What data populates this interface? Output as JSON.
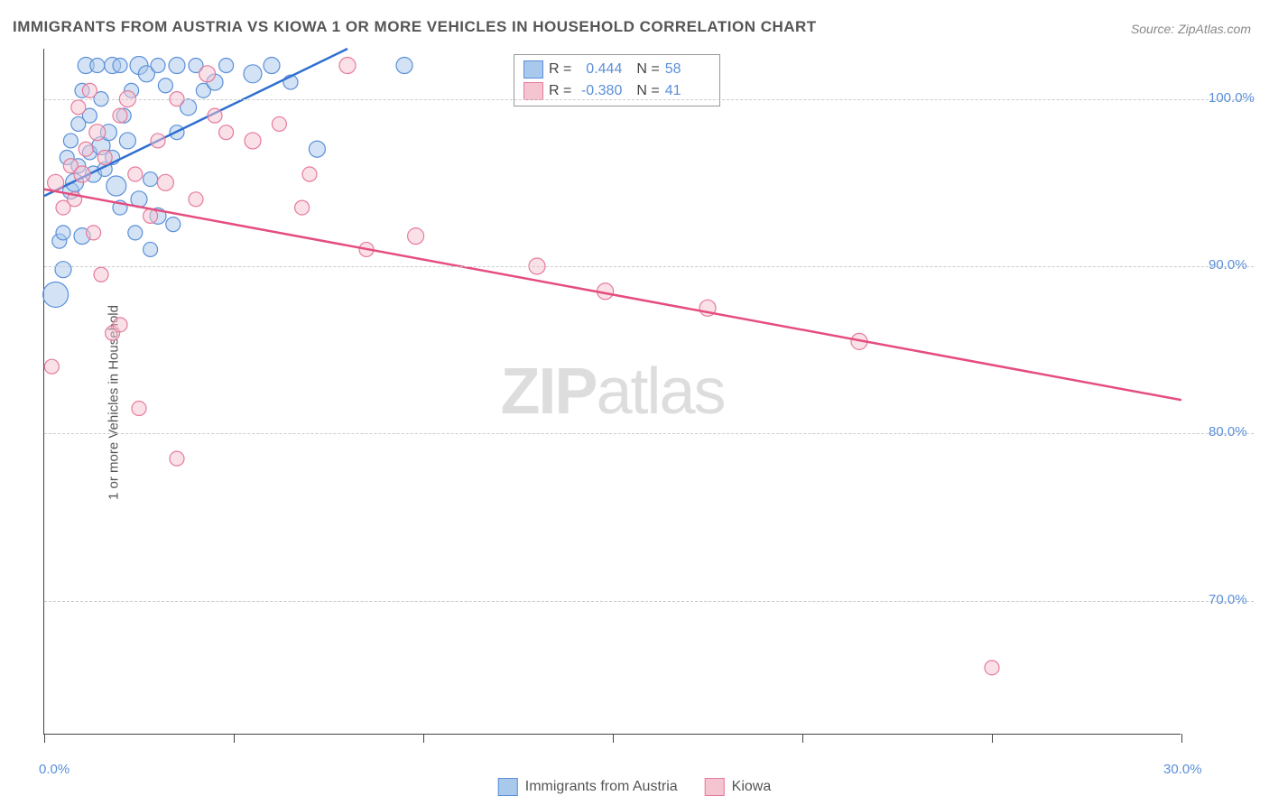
{
  "title": "IMMIGRANTS FROM AUSTRIA VS KIOWA 1 OR MORE VEHICLES IN HOUSEHOLD CORRELATION CHART",
  "source": "Source: ZipAtlas.com",
  "y_axis_label": "1 or more Vehicles in Household",
  "watermark_bold": "ZIP",
  "watermark_rest": "atlas",
  "chart": {
    "type": "scatter",
    "xlim": [
      0,
      30
    ],
    "ylim": [
      62,
      103
    ],
    "x_ticks": [
      0,
      5,
      10,
      15,
      20,
      25,
      30
    ],
    "x_tick_labels": {
      "0": "0.0%",
      "30": "30.0%"
    },
    "y_ticks": [
      70,
      80,
      90,
      100
    ],
    "y_tick_labels": [
      "70.0%",
      "80.0%",
      "90.0%",
      "100.0%"
    ],
    "grid_color": "#cccccc",
    "background_color": "#ffffff",
    "axis_color": "#444444",
    "series": [
      {
        "name": "Immigrants from Austria",
        "fill_color": "#a8c8ec",
        "stroke_color": "#5b8fd9",
        "fill_opacity": 0.5,
        "line_color": "#2e6fd1",
        "r_value": "0.444",
        "n_value": "58",
        "trend_line": {
          "x1": 0,
          "y1": 94.2,
          "x2": 8.0,
          "y2": 103
        },
        "points": [
          {
            "x": 0.3,
            "y": 88.3,
            "r": 14
          },
          {
            "x": 0.4,
            "y": 91.5,
            "r": 8
          },
          {
            "x": 0.5,
            "y": 92.0,
            "r": 8
          },
          {
            "x": 0.5,
            "y": 89.8,
            "r": 9
          },
          {
            "x": 0.6,
            "y": 96.5,
            "r": 8
          },
          {
            "x": 0.7,
            "y": 94.5,
            "r": 9
          },
          {
            "x": 0.7,
            "y": 97.5,
            "r": 8
          },
          {
            "x": 0.8,
            "y": 95.0,
            "r": 10
          },
          {
            "x": 0.9,
            "y": 96.0,
            "r": 8
          },
          {
            "x": 0.9,
            "y": 98.5,
            "r": 8
          },
          {
            "x": 1.0,
            "y": 91.8,
            "r": 9
          },
          {
            "x": 1.0,
            "y": 100.5,
            "r": 8
          },
          {
            "x": 1.1,
            "y": 102.0,
            "r": 9
          },
          {
            "x": 1.2,
            "y": 96.8,
            "r": 8
          },
          {
            "x": 1.2,
            "y": 99.0,
            "r": 8
          },
          {
            "x": 1.3,
            "y": 95.5,
            "r": 9
          },
          {
            "x": 1.4,
            "y": 102.0,
            "r": 8
          },
          {
            "x": 1.5,
            "y": 97.2,
            "r": 10
          },
          {
            "x": 1.5,
            "y": 100.0,
            "r": 8
          },
          {
            "x": 1.6,
            "y": 95.8,
            "r": 8
          },
          {
            "x": 1.7,
            "y": 98.0,
            "r": 9
          },
          {
            "x": 1.8,
            "y": 96.5,
            "r": 8
          },
          {
            "x": 1.8,
            "y": 102.0,
            "r": 9
          },
          {
            "x": 1.9,
            "y": 94.8,
            "r": 11
          },
          {
            "x": 2.0,
            "y": 102.0,
            "r": 8
          },
          {
            "x": 2.0,
            "y": 93.5,
            "r": 8
          },
          {
            "x": 2.1,
            "y": 99.0,
            "r": 8
          },
          {
            "x": 2.2,
            "y": 97.5,
            "r": 9
          },
          {
            "x": 2.3,
            "y": 100.5,
            "r": 8
          },
          {
            "x": 2.4,
            "y": 92.0,
            "r": 8
          },
          {
            "x": 2.5,
            "y": 94.0,
            "r": 9
          },
          {
            "x": 2.5,
            "y": 102.0,
            "r": 10
          },
          {
            "x": 2.7,
            "y": 101.5,
            "r": 9
          },
          {
            "x": 2.8,
            "y": 95.2,
            "r": 8
          },
          {
            "x": 2.8,
            "y": 91.0,
            "r": 8
          },
          {
            "x": 3.0,
            "y": 102.0,
            "r": 8
          },
          {
            "x": 3.0,
            "y": 93.0,
            "r": 9
          },
          {
            "x": 3.2,
            "y": 100.8,
            "r": 8
          },
          {
            "x": 3.4,
            "y": 92.5,
            "r": 8
          },
          {
            "x": 3.5,
            "y": 98.0,
            "r": 8
          },
          {
            "x": 3.5,
            "y": 102.0,
            "r": 9
          },
          {
            "x": 3.8,
            "y": 99.5,
            "r": 9
          },
          {
            "x": 4.0,
            "y": 102.0,
            "r": 8
          },
          {
            "x": 4.2,
            "y": 100.5,
            "r": 8
          },
          {
            "x": 4.5,
            "y": 101.0,
            "r": 9
          },
          {
            "x": 4.8,
            "y": 102.0,
            "r": 8
          },
          {
            "x": 5.5,
            "y": 101.5,
            "r": 10
          },
          {
            "x": 6.0,
            "y": 102.0,
            "r": 9
          },
          {
            "x": 6.5,
            "y": 101.0,
            "r": 8
          },
          {
            "x": 7.2,
            "y": 97.0,
            "r": 9
          },
          {
            "x": 9.5,
            "y": 102.0,
            "r": 9
          }
        ]
      },
      {
        "name": "Kiowa",
        "fill_color": "#f5c4d1",
        "stroke_color": "#e67a9b",
        "fill_opacity": 0.5,
        "line_color": "#e54d7e",
        "r_value": "-0.380",
        "n_value": "41",
        "trend_line": {
          "x1": 0,
          "y1": 94.6,
          "x2": 30,
          "y2": 82.0
        },
        "points": [
          {
            "x": 0.2,
            "y": 84.0,
            "r": 8
          },
          {
            "x": 0.3,
            "y": 95.0,
            "r": 9
          },
          {
            "x": 0.5,
            "y": 93.5,
            "r": 8
          },
          {
            "x": 0.7,
            "y": 96.0,
            "r": 8
          },
          {
            "x": 0.8,
            "y": 94.0,
            "r": 8
          },
          {
            "x": 0.9,
            "y": 99.5,
            "r": 8
          },
          {
            "x": 1.0,
            "y": 95.5,
            "r": 9
          },
          {
            "x": 1.1,
            "y": 97.0,
            "r": 8
          },
          {
            "x": 1.2,
            "y": 100.5,
            "r": 8
          },
          {
            "x": 1.3,
            "y": 92.0,
            "r": 8
          },
          {
            "x": 1.4,
            "y": 98.0,
            "r": 9
          },
          {
            "x": 1.5,
            "y": 89.5,
            "r": 8
          },
          {
            "x": 1.6,
            "y": 96.5,
            "r": 8
          },
          {
            "x": 1.8,
            "y": 86.0,
            "r": 8
          },
          {
            "x": 2.0,
            "y": 99.0,
            "r": 8
          },
          {
            "x": 2.0,
            "y": 86.5,
            "r": 8
          },
          {
            "x": 2.2,
            "y": 100.0,
            "r": 9
          },
          {
            "x": 2.4,
            "y": 95.5,
            "r": 8
          },
          {
            "x": 2.5,
            "y": 81.5,
            "r": 8
          },
          {
            "x": 2.8,
            "y": 93.0,
            "r": 8
          },
          {
            "x": 3.0,
            "y": 97.5,
            "r": 8
          },
          {
            "x": 3.2,
            "y": 95.0,
            "r": 9
          },
          {
            "x": 3.5,
            "y": 100.0,
            "r": 8
          },
          {
            "x": 3.5,
            "y": 78.5,
            "r": 8
          },
          {
            "x": 4.0,
            "y": 94.0,
            "r": 8
          },
          {
            "x": 4.3,
            "y": 101.5,
            "r": 9
          },
          {
            "x": 4.5,
            "y": 99.0,
            "r": 8
          },
          {
            "x": 4.8,
            "y": 98.0,
            "r": 8
          },
          {
            "x": 5.5,
            "y": 97.5,
            "r": 9
          },
          {
            "x": 6.2,
            "y": 98.5,
            "r": 8
          },
          {
            "x": 6.8,
            "y": 93.5,
            "r": 8
          },
          {
            "x": 7.0,
            "y": 95.5,
            "r": 8
          },
          {
            "x": 8.0,
            "y": 102.0,
            "r": 9
          },
          {
            "x": 8.5,
            "y": 91.0,
            "r": 8
          },
          {
            "x": 9.8,
            "y": 91.8,
            "r": 9
          },
          {
            "x": 13.0,
            "y": 90.0,
            "r": 9
          },
          {
            "x": 14.8,
            "y": 88.5,
            "r": 9
          },
          {
            "x": 17.5,
            "y": 87.5,
            "r": 9
          },
          {
            "x": 21.5,
            "y": 85.5,
            "r": 9
          },
          {
            "x": 25.0,
            "y": 66.0,
            "r": 8
          }
        ]
      }
    ]
  },
  "legend_stats": {
    "rows": [
      {
        "swatch_fill": "#a8c8ec",
        "swatch_stroke": "#5b8fd9",
        "r_label": "R =",
        "r_val": "0.444",
        "n_label": "N =",
        "n_val": "58"
      },
      {
        "swatch_fill": "#f5c4d1",
        "swatch_stroke": "#e67a9b",
        "r_label": "R =",
        "r_val": "-0.380",
        "n_label": "N =",
        "n_val": "41"
      }
    ]
  },
  "bottom_legend": [
    {
      "swatch_fill": "#a8c8ec",
      "swatch_stroke": "#5b8fd9",
      "label": "Immigrants from Austria"
    },
    {
      "swatch_fill": "#f5c4d1",
      "swatch_stroke": "#e67a9b",
      "label": "Kiowa"
    }
  ]
}
